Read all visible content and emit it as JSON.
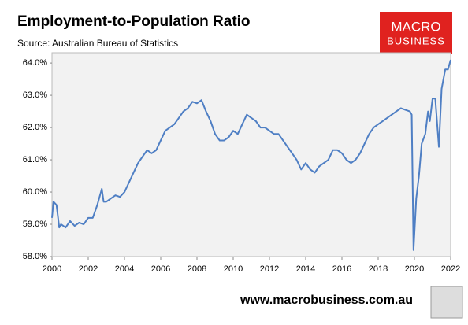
{
  "chart_data": {
    "type": "line",
    "title": "Employment-to-Population Ratio",
    "subtitle": "Source: Australian Bureau of Statistics",
    "logo": [
      "MACRO",
      "BUSINESS"
    ],
    "footer": "www.macrobusiness.com.au",
    "x": [
      2000.0,
      2000.08,
      2000.25,
      2000.4,
      2000.5,
      2000.75,
      2001.0,
      2001.25,
      2001.5,
      2001.75,
      2002.0,
      2002.25,
      2002.5,
      2002.75,
      2002.85,
      2003.0,
      2003.25,
      2003.5,
      2003.75,
      2004.0,
      2004.25,
      2004.5,
      2004.75,
      2005.0,
      2005.25,
      2005.5,
      2005.75,
      2006.0,
      2006.25,
      2006.5,
      2006.75,
      2007.0,
      2007.25,
      2007.5,
      2007.75,
      2008.0,
      2008.25,
      2008.5,
      2008.75,
      2009.0,
      2009.25,
      2009.5,
      2009.75,
      2010.0,
      2010.25,
      2010.5,
      2010.75,
      2011.0,
      2011.25,
      2011.5,
      2011.75,
      2012.0,
      2012.25,
      2012.5,
      2012.75,
      2013.0,
      2013.25,
      2013.5,
      2013.75,
      2014.0,
      2014.25,
      2014.5,
      2014.75,
      2015.0,
      2015.25,
      2015.5,
      2015.75,
      2016.0,
      2016.25,
      2016.5,
      2016.75,
      2017.0,
      2017.25,
      2017.5,
      2017.75,
      2018.0,
      2018.25,
      2018.5,
      2018.75,
      2019.0,
      2019.25,
      2019.5,
      2019.75,
      2019.85,
      2019.95,
      2020.1,
      2020.25,
      2020.4,
      2020.6,
      2020.75,
      2020.85,
      2021.0,
      2021.15,
      2021.35,
      2021.5,
      2021.7,
      2021.85,
      2022.0
    ],
    "series": [
      {
        "name": "Employment-to-Population Ratio",
        "color": "#4f7fc4",
        "values": [
          59.2,
          59.7,
          59.6,
          58.9,
          59.0,
          58.9,
          59.1,
          58.95,
          59.05,
          59.0,
          59.2,
          59.2,
          59.6,
          60.1,
          59.7,
          59.7,
          59.8,
          59.9,
          59.85,
          60.0,
          60.3,
          60.6,
          60.9,
          61.1,
          61.3,
          61.2,
          61.3,
          61.6,
          61.9,
          62.0,
          62.1,
          62.3,
          62.5,
          62.6,
          62.8,
          62.75,
          62.85,
          62.5,
          62.2,
          61.8,
          61.6,
          61.6,
          61.7,
          61.9,
          61.8,
          62.1,
          62.4,
          62.3,
          62.2,
          62.0,
          62.0,
          61.9,
          61.8,
          61.8,
          61.6,
          61.4,
          61.2,
          61.0,
          60.7,
          60.9,
          60.7,
          60.6,
          60.8,
          60.9,
          61.0,
          61.3,
          61.3,
          61.2,
          61.0,
          60.9,
          61.0,
          61.2,
          61.5,
          61.8,
          62.0,
          62.1,
          62.2,
          62.3,
          62.4,
          62.5,
          62.6,
          62.55,
          62.5,
          62.4,
          58.2,
          59.8,
          60.5,
          61.5,
          61.8,
          62.5,
          62.2,
          62.9,
          62.9,
          61.4,
          63.2,
          63.8,
          63.8,
          64.1
        ]
      }
    ],
    "xlim": [
      2000,
      2022
    ],
    "xticks": [
      2000,
      2002,
      2004,
      2006,
      2008,
      2010,
      2012,
      2014,
      2016,
      2018,
      2020,
      2022
    ],
    "ylim": [
      58,
      64.32
    ],
    "yticks": [
      {
        "value": 58,
        "label": "58.0%"
      },
      {
        "value": 59,
        "label": "59.0%"
      },
      {
        "value": 60,
        "label": "60.0%"
      },
      {
        "value": 61,
        "label": "61.0%"
      },
      {
        "value": 62,
        "label": "62.0%"
      },
      {
        "value": 63,
        "label": "63.0%"
      },
      {
        "value": 64,
        "label": "64.0%"
      }
    ],
    "grid": false
  }
}
